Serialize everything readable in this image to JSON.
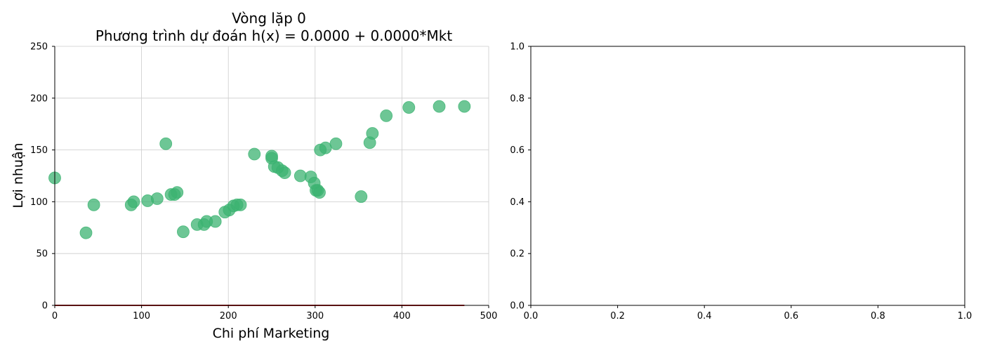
{
  "chart_data": [
    {
      "type": "scatter",
      "title_lines": [
        "Vòng lặp 0",
        "Phương trình dự đoán h(x) = 0.0000 + 0.0000*Mkt"
      ],
      "xlabel": "Chi phí Marketing",
      "ylabel": "Lợi nhuận",
      "xlim": [
        0,
        500
      ],
      "ylim": [
        0,
        250
      ],
      "xticks": [
        0,
        100,
        200,
        300,
        400,
        500
      ],
      "yticks": [
        0,
        50,
        100,
        150,
        200,
        250
      ],
      "grid": true,
      "point_color": "#3cb371",
      "line_color": "#b22222",
      "points": [
        [
          0,
          123
        ],
        [
          36,
          70
        ],
        [
          45,
          97
        ],
        [
          88,
          97
        ],
        [
          91,
          100
        ],
        [
          107,
          101
        ],
        [
          118,
          103
        ],
        [
          128,
          156
        ],
        [
          134,
          107
        ],
        [
          138,
          107
        ],
        [
          141,
          109
        ],
        [
          148,
          71
        ],
        [
          164,
          78
        ],
        [
          172,
          78
        ],
        [
          175,
          81
        ],
        [
          185,
          81
        ],
        [
          196,
          90
        ],
        [
          201,
          92
        ],
        [
          206,
          96
        ],
        [
          210,
          97
        ],
        [
          214,
          97
        ],
        [
          230,
          146
        ],
        [
          250,
          144
        ],
        [
          250,
          142
        ],
        [
          253,
          134
        ],
        [
          257,
          133
        ],
        [
          262,
          130
        ],
        [
          265,
          128
        ],
        [
          283,
          125
        ],
        [
          295,
          124
        ],
        [
          299,
          118
        ],
        [
          301,
          111
        ],
        [
          303,
          111
        ],
        [
          305,
          109
        ],
        [
          306,
          150
        ],
        [
          312,
          152
        ],
        [
          324,
          156
        ],
        [
          353,
          105
        ],
        [
          363,
          157
        ],
        [
          366,
          166
        ],
        [
          382,
          183
        ],
        [
          408,
          191
        ],
        [
          443,
          192
        ],
        [
          472,
          192
        ]
      ],
      "regression_line": {
        "intercept": 0.0,
        "slope": 0.0,
        "x_range": [
          0,
          472
        ]
      }
    },
    {
      "type": "scatter",
      "xlim": [
        0,
        1
      ],
      "ylim": [
        0,
        1
      ],
      "xticks": [
        "0.0",
        "0.2",
        "0.4",
        "0.6",
        "0.8",
        "1.0"
      ],
      "yticks": [
        "0.0",
        "0.2",
        "0.4",
        "0.6",
        "0.8",
        "1.0"
      ]
    }
  ]
}
